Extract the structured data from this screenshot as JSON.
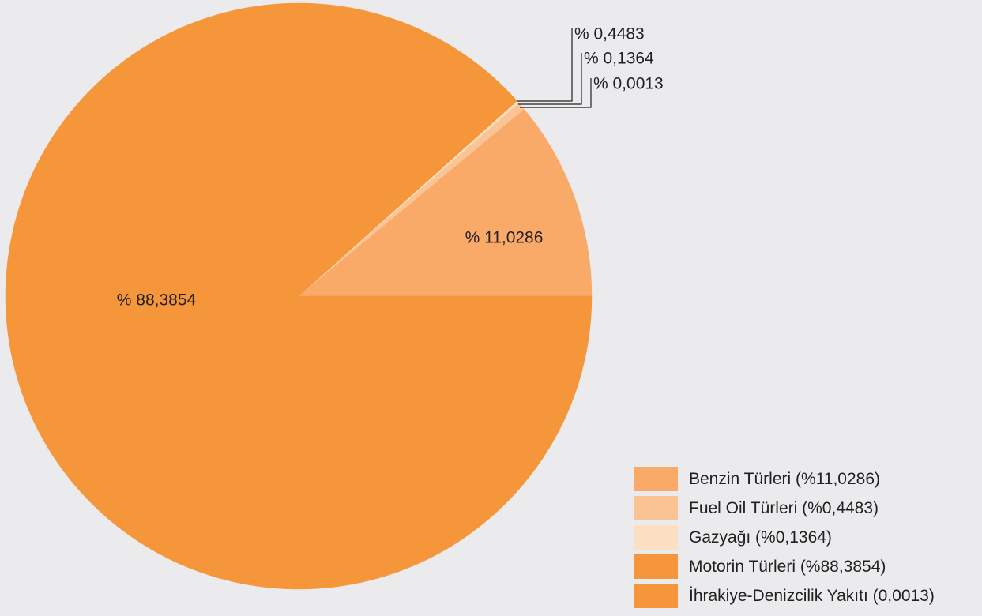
{
  "chart_data": {
    "type": "pie",
    "slices": [
      {
        "name": "Benzin Türleri",
        "value": 11.0286,
        "label": "% 11,0286",
        "color": "#f9aa68"
      },
      {
        "name": "Fuel Oil Türleri",
        "value": 0.4483,
        "label": "% 0,4483",
        "color": "#fbc494"
      },
      {
        "name": "Gazyağı",
        "value": 0.1364,
        "label": "% 0,1364",
        "color": "#fde0c4"
      },
      {
        "name": "İhrakiye-Denizcilik Yakıtı",
        "value": 0.0013,
        "label": "% 0,0013",
        "color": "#f6963a"
      },
      {
        "name": "Motorin Türleri",
        "value": 88.3854,
        "label": "% 88,3854",
        "color": "#f6963a"
      }
    ],
    "legend": {
      "position": "bottom-right",
      "items": [
        {
          "label": "Benzin Türleri (%11,0286)",
          "color": "#f9aa68"
        },
        {
          "label": "Fuel Oil Türleri (%0,4483)",
          "color": "#fbc494"
        },
        {
          "label": "Gazyağı (%0,1364)",
          "color": "#fde0c4"
        },
        {
          "label": "Motorin Türleri (%88,3854)",
          "color": "#f6963a"
        },
        {
          "label": "İhrakiye-Denizcilik Yakıtı (0,0013)",
          "color": "#f6963a"
        }
      ]
    }
  }
}
